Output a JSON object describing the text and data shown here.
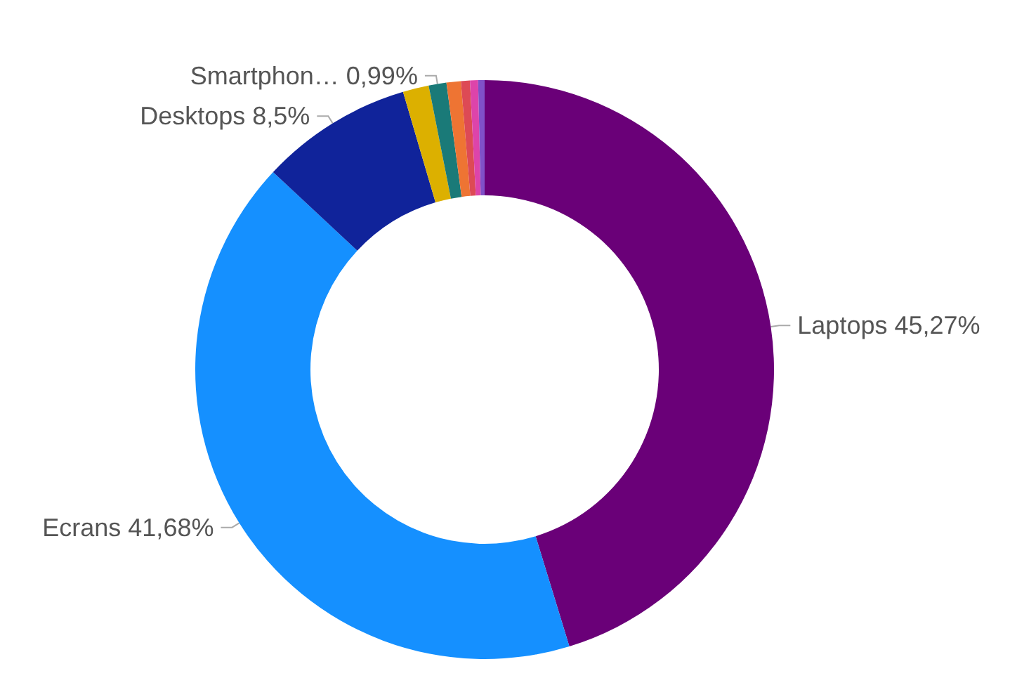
{
  "chart_data": {
    "type": "donut",
    "categories": [
      "Laptops",
      "Ecrans",
      "Desktops",
      null,
      "Smartphon…",
      null,
      null,
      null,
      null
    ],
    "values": [
      45.27,
      41.68,
      8.5,
      1.45,
      0.99,
      0.8,
      0.5,
      0.45,
      0.36
    ],
    "value_labels": [
      "45,27%",
      "41,68%",
      "8,5%",
      null,
      "0,99%",
      null,
      null,
      null,
      null
    ],
    "colors": [
      "#6a0078",
      "#1590ff",
      "#10239a",
      "#dcb000",
      "#1a7a78",
      "#ee7433",
      "#dd4a55",
      "#dd44aa",
      "#8050c8"
    ],
    "legend": false
  }
}
